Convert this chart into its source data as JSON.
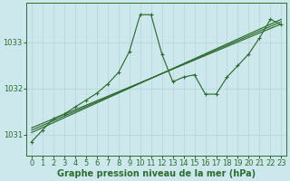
{
  "xlabel": "Graphe pression niveau de la mer (hPa)",
  "bg_color": "#cce8ec",
  "grid_color": "#aad4d8",
  "line_color": "#2d6e2d",
  "x_ticks": [
    0,
    1,
    2,
    3,
    4,
    5,
    6,
    7,
    8,
    9,
    10,
    11,
    12,
    13,
    14,
    15,
    16,
    17,
    18,
    19,
    20,
    21,
    22,
    23
  ],
  "y_ticks": [
    1031,
    1032,
    1033
  ],
  "ylim": [
    1030.55,
    1033.85
  ],
  "xlim": [
    -0.5,
    23.5
  ],
  "series1": [
    1030.85,
    1031.1,
    1031.35,
    1031.45,
    1031.6,
    1031.75,
    1031.9,
    1032.1,
    1032.35,
    1032.8,
    1033.6,
    1033.6,
    1032.75,
    1032.15,
    1032.25,
    1032.3,
    1031.88,
    1031.88,
    1032.25,
    1032.5,
    1032.75,
    1033.1,
    1033.5,
    1033.38
  ],
  "series2_x": [
    0,
    23
  ],
  "series2_y": [
    1031.05,
    1033.5
  ],
  "series3_x": [
    0,
    23
  ],
  "series3_y": [
    1031.1,
    1033.45
  ],
  "series4_x": [
    0,
    23
  ],
  "series4_y": [
    1031.15,
    1033.4
  ],
  "tick_fontsize": 6,
  "label_fontsize": 7,
  "marker": "+"
}
